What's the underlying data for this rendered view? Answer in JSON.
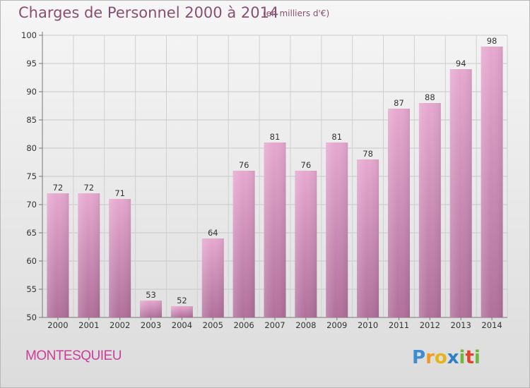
{
  "header": {
    "title": "Charges de Personnel 2000 à 2014",
    "subtitle": "(en milliers d'€)"
  },
  "footer": {
    "place": "MONTESQUIEU",
    "brand": "Proxiti"
  },
  "colors": {
    "bar_top": "#e6a8cf",
    "bar_bottom": "#b0709a",
    "title": "#8a4f70",
    "place": "#cc3d99"
  },
  "chart_data": {
    "type": "bar",
    "title": "Charges de Personnel 2000 à 2014",
    "subtitle": "(en milliers d'€)",
    "xlabel": "",
    "ylabel": "",
    "categories": [
      "2000",
      "2001",
      "2002",
      "2003",
      "2004",
      "2005",
      "2006",
      "2007",
      "2008",
      "2009",
      "2010",
      "2011",
      "2012",
      "2013",
      "2014"
    ],
    "values": [
      72,
      72,
      71,
      53,
      52,
      64,
      76,
      81,
      76,
      81,
      78,
      87,
      88,
      94,
      98
    ],
    "ylim": [
      50,
      100
    ],
    "yticks": [
      50,
      55,
      60,
      65,
      70,
      75,
      80,
      85,
      90,
      95,
      100
    ],
    "grid": true,
    "legend": "none"
  }
}
